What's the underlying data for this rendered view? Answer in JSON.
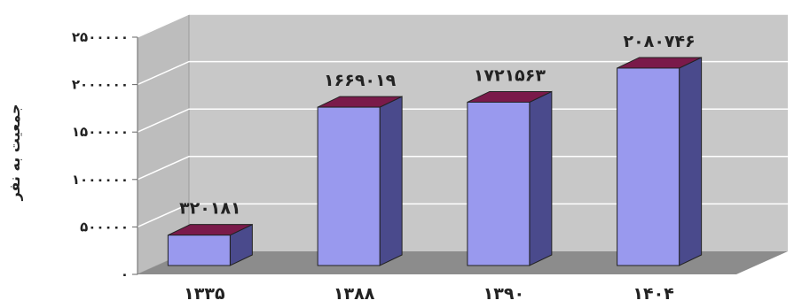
{
  "chart_data": {
    "type": "bar",
    "title": "",
    "xlabel": "",
    "ylabel": "جمعیت به نفر",
    "categories": [
      "۱۳۳۵",
      "۱۳۸۸",
      "۱۳۹۰",
      "۱۴۰۴"
    ],
    "values": [
      320181,
      1669019,
      1721563,
      2080746
    ],
    "data_labels": [
      "۳۲۰۱۸۱",
      "۱۶۶۹۰۱۹",
      "۱۷۲۱۵۶۳",
      "۲۰۸۰۷۴۶"
    ],
    "ylim": [
      0,
      2500000
    ],
    "yticks": [
      0,
      500000,
      1000000,
      1500000,
      2000000,
      2500000
    ],
    "ytick_labels": [
      "۰",
      "۵۰۰۰۰۰",
      "۱۰۰۰۰۰۰",
      "۱۵۰۰۰۰۰",
      "۲۰۰۰۰۰۰",
      "۲۵۰۰۰۰۰"
    ],
    "grid": true,
    "style": "3d",
    "colors": {
      "bar_front": "#9999ee",
      "bar_side": "#4a4a8c",
      "bar_top": "#7a1a4a",
      "wall": "#c8c8c8",
      "floor": "#8c8c8c",
      "grid": "#ffffff"
    }
  }
}
